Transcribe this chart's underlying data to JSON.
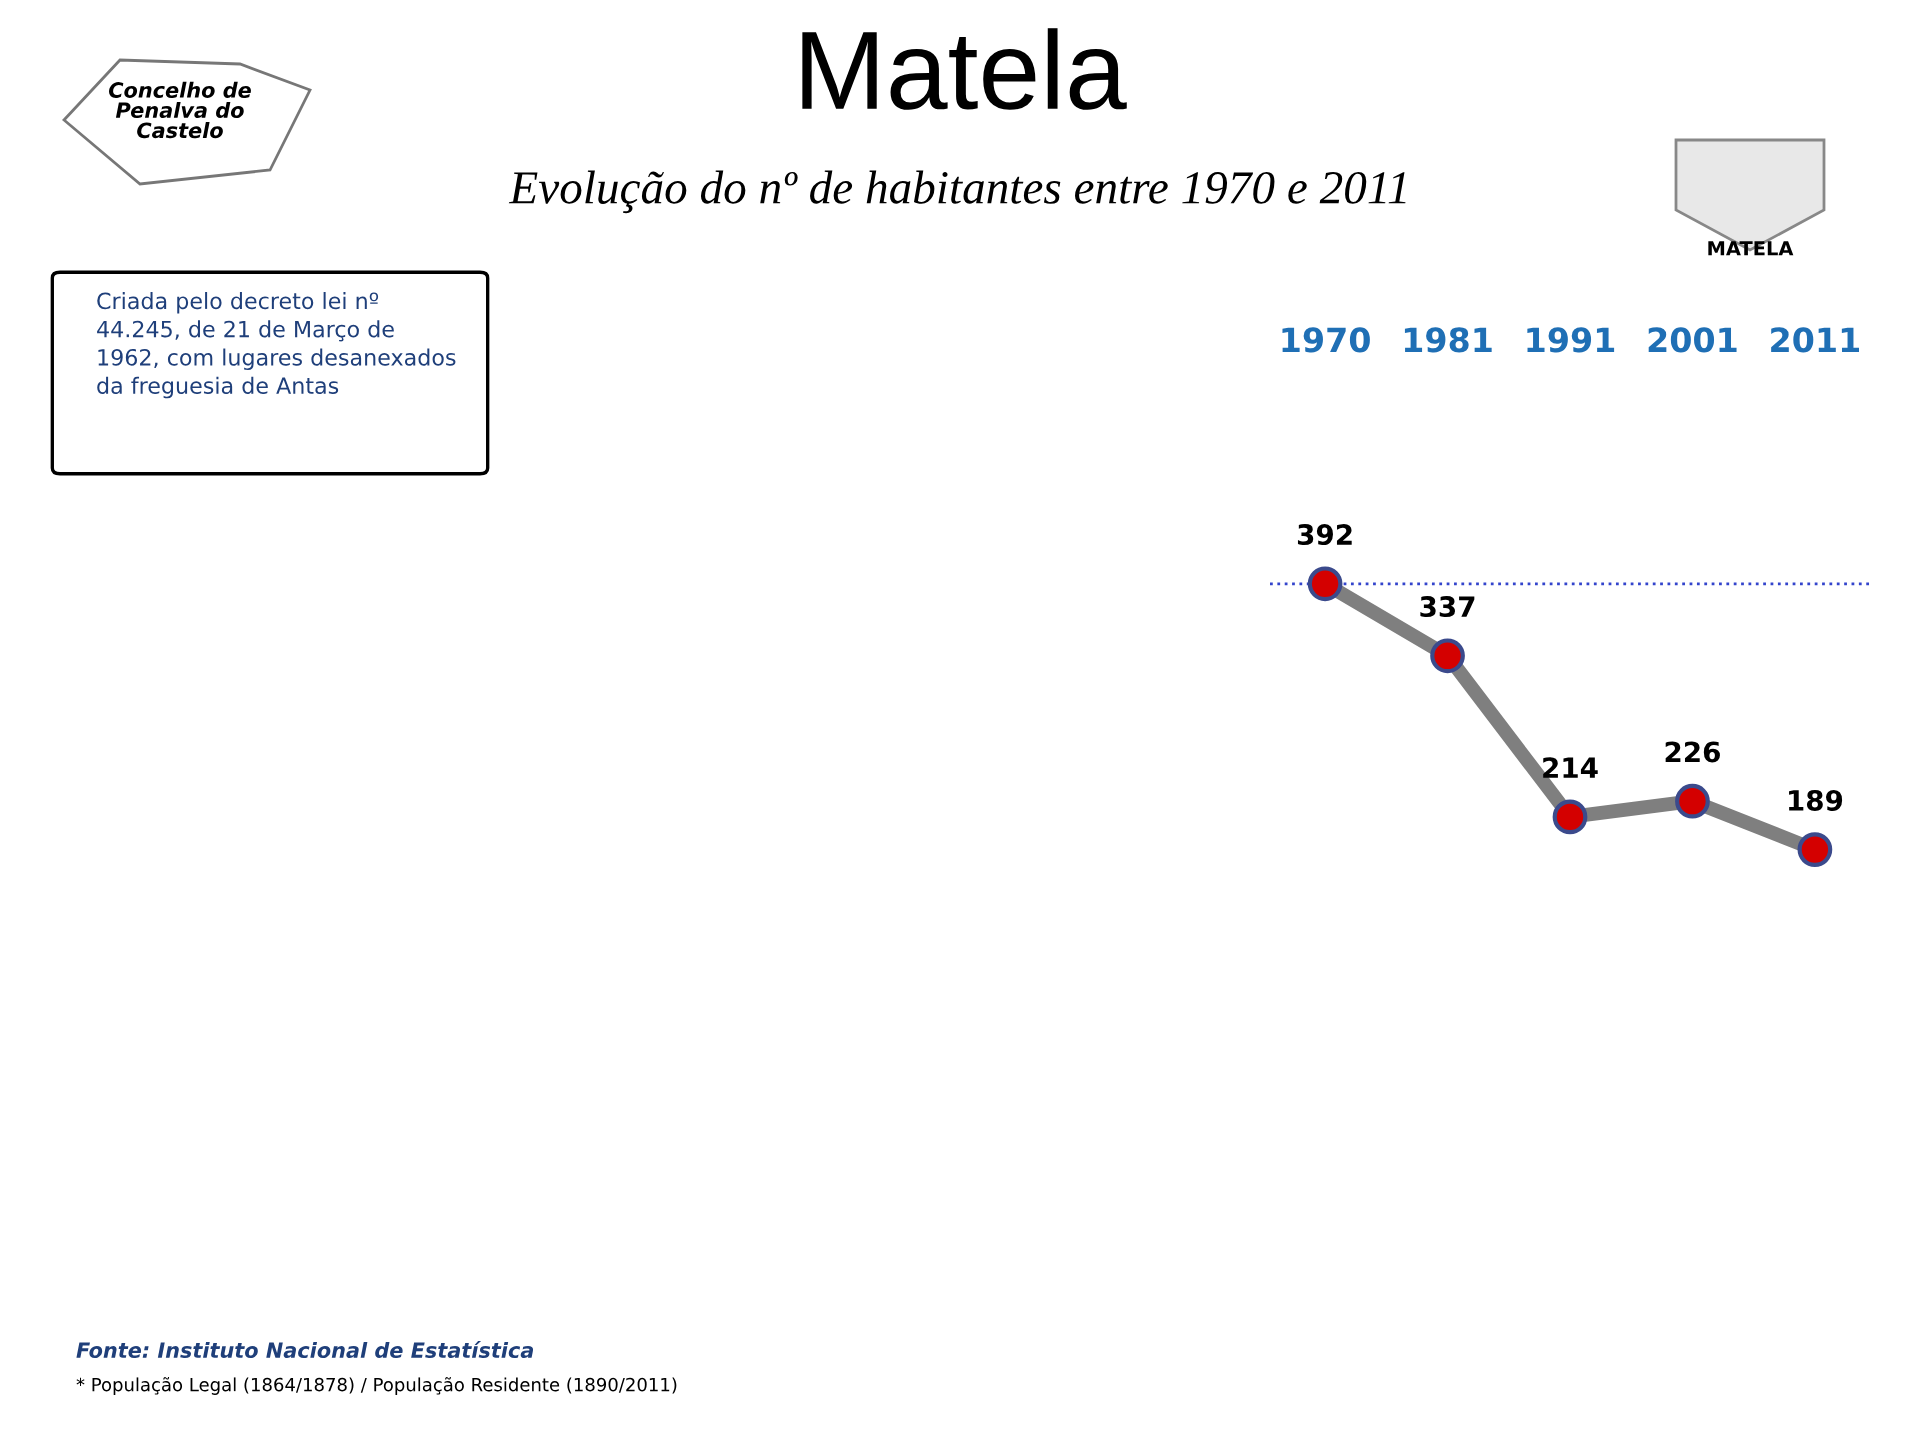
{
  "chart_data": {
    "type": "line",
    "title": "Matela",
    "subtitle": "Evolução do nº de habitantes entre 1970 e 2011",
    "categories": [
      "1970",
      "1981",
      "1991",
      "2001",
      "2011"
    ],
    "series": [
      {
        "color": "#7f7f7f",
        "colors": [
          "#d40000",
          "#d40000",
          "#d40000",
          "#d40000",
          "#d40000"
        ],
        "values": [
          392,
          337,
          214,
          226,
          189
        ]
      }
    ],
    "data_labels": true,
    "marker": "circle",
    "line_style": "solid",
    "grid": false,
    "ref_lines": [
      {
        "axis": "y",
        "value": 392,
        "color": "#3344cc",
        "line_style": "dotted"
      }
    ],
    "annotations": [
      "Criada pelo decreto lei nº 44.245, de 21 de Março de 1962, com lugares desanexados da freguesia de Antas",
      "Fonte: Instituto Nacional de Estatística",
      "* População Legal (1864/1878) / População Residente (1890/2011)",
      "Concelho de Penalva do Castelo",
      "MATELA"
    ]
  }
}
